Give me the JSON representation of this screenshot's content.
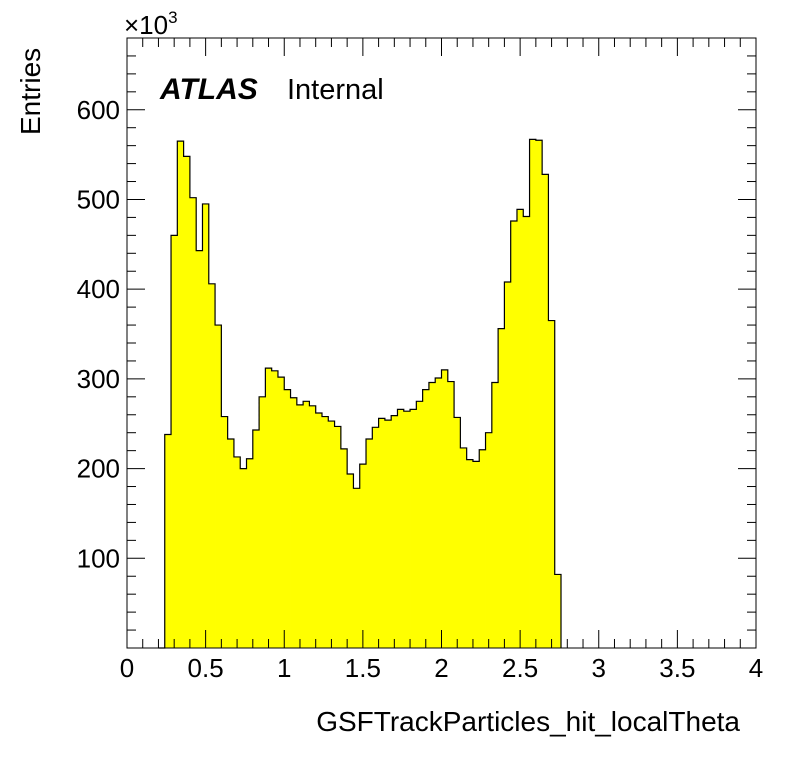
{
  "chart_data": {
    "type": "bar",
    "style": "step-histogram",
    "fill_color": "#ffff00",
    "line_color": "#000000",
    "xlabel": "GSFTrackParticles_hit_localTheta",
    "ylabel": "Entries",
    "y_multiplier_label": "×10",
    "y_multiplier_exponent": "3",
    "xlim": [
      0,
      4
    ],
    "ylim": [
      0,
      680
    ],
    "x_ticks": [
      "0",
      "0.5",
      "1",
      "1.5",
      "2",
      "2.5",
      "3",
      "3.5",
      "4"
    ],
    "y_ticks": [
      "100",
      "200",
      "300",
      "400",
      "500",
      "600"
    ],
    "bin_width": 0.04,
    "x_start": 0.2,
    "values": [
      0,
      238,
      460,
      565,
      548,
      502,
      443,
      495,
      406,
      360,
      258,
      233,
      213,
      200,
      211,
      243,
      280,
      312,
      309,
      302,
      288,
      279,
      271,
      275,
      270,
      262,
      258,
      253,
      247,
      222,
      194,
      178,
      205,
      233,
      246,
      256,
      254,
      259,
      266,
      264,
      266,
      275,
      288,
      296,
      301,
      310,
      297,
      257,
      223,
      210,
      208,
      221,
      240,
      296,
      356,
      408,
      476,
      489,
      481,
      567,
      566,
      528,
      365,
      82
    ],
    "annotation": {
      "brand": "ATLAS",
      "label": "Internal"
    }
  }
}
